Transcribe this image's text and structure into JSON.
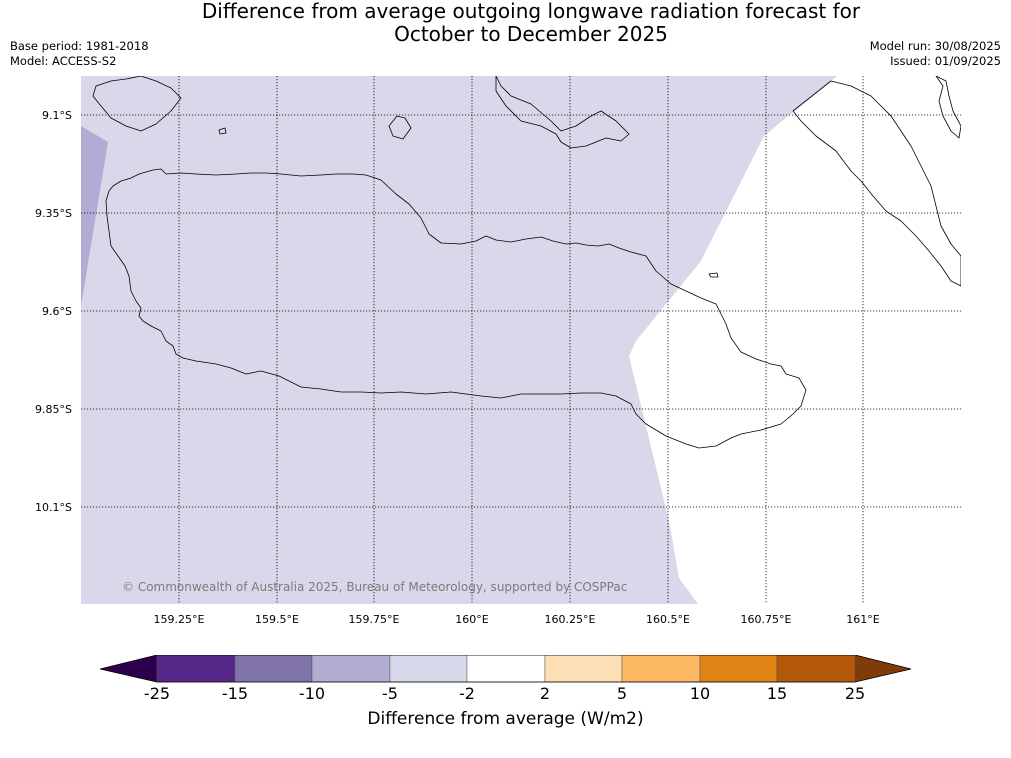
{
  "title": {
    "line1": "Difference from average outgoing longwave radiation forecast for",
    "line2": "October to December 2025"
  },
  "meta": {
    "base_period": "Base period: 1981-2018",
    "model": "Model: ACCESS-S2",
    "model_run": "Model run: 30/08/2025",
    "issued": "Issued: 01/09/2025"
  },
  "map": {
    "lat_labels": [
      "9.1°S",
      "9.35°S",
      "9.6°S",
      "9.85°S",
      "10.1°S"
    ],
    "lon_labels": [
      "159.25°E",
      "159.5°E",
      "159.75°E",
      "160°E",
      "160.25°E",
      "160.5°E",
      "160.75°E",
      "161°E"
    ],
    "copyright": "© Commonwealth of Australia 2025, Bureau of Meteorology, supported by COSPPac",
    "fill_colors": {
      "background_class": "#d8d8ea",
      "darker_class": "#b2abd3",
      "neutral_class": "#ffffff",
      "coastline": "#000000"
    }
  },
  "colorbar": {
    "title": "Difference from average (W/m2)",
    "ticks": [
      "-25",
      "-15",
      "-10",
      "-5",
      "-2",
      "2",
      "5",
      "10",
      "15",
      "25"
    ],
    "colors": [
      "#2d004b",
      "#542788",
      "#8073ac",
      "#b2abd2",
      "#d8daeb",
      "#ffffff",
      "#fee0b6",
      "#fdb863",
      "#e08214",
      "#b35806",
      "#7f3b08"
    ]
  }
}
